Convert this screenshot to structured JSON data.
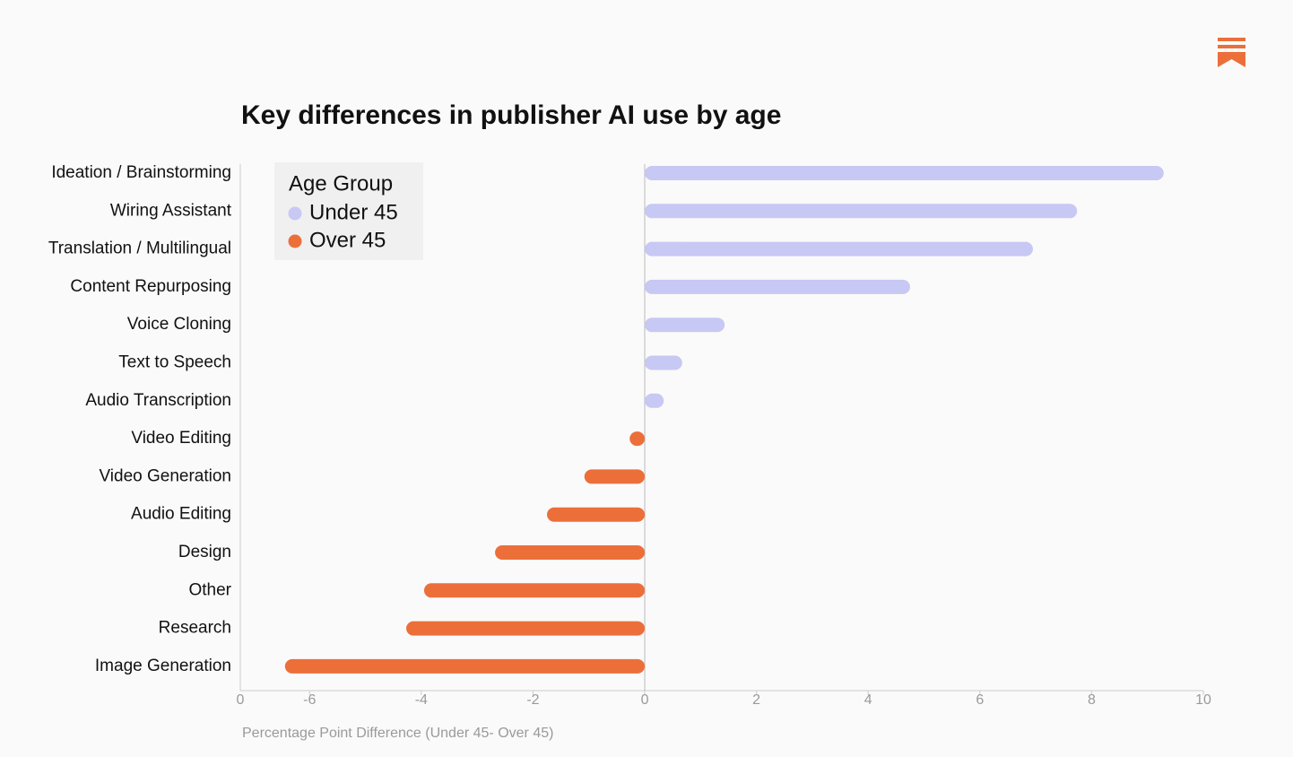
{
  "chart_data": {
    "type": "bar",
    "orientation": "horizontal",
    "title": "Key differences in publisher AI use by age",
    "x_label": "Percentage Point Difference (Under 45- Over 45)",
    "legend_title": "Age Group",
    "annotations": [
      "0"
    ],
    "categories": [
      "Ideation / Brainstorming",
      "Wiring Assistant",
      "Translation / Multilingual",
      "Content Repurposing",
      "Voice Cloning",
      "Text to Speech",
      "Audio Transcription",
      "Video Editing",
      "Video Generation",
      "Audio Editing",
      "Design",
      "Other",
      "Research",
      "Image Generation"
    ],
    "series": [
      {
        "name": "Under 45",
        "color": "#c8c8f4",
        "values": [
          9.29,
          7.74,
          6.95,
          4.75,
          1.43,
          0.67,
          0.34,
          null,
          null,
          null,
          null,
          null,
          null,
          null
        ]
      },
      {
        "name": "Over 45",
        "color": "#ec6f3a",
        "values": [
          null,
          null,
          null,
          null,
          null,
          null,
          null,
          -0.27,
          -1.08,
          -1.75,
          -2.68,
          -3.95,
          -4.27,
          -6.44
        ]
      }
    ],
    "xlim": [
      -7.24,
      10
    ],
    "xticks": [
      -6,
      -4,
      -2,
      0,
      2,
      4,
      6,
      8,
      10
    ],
    "grid": false
  }
}
